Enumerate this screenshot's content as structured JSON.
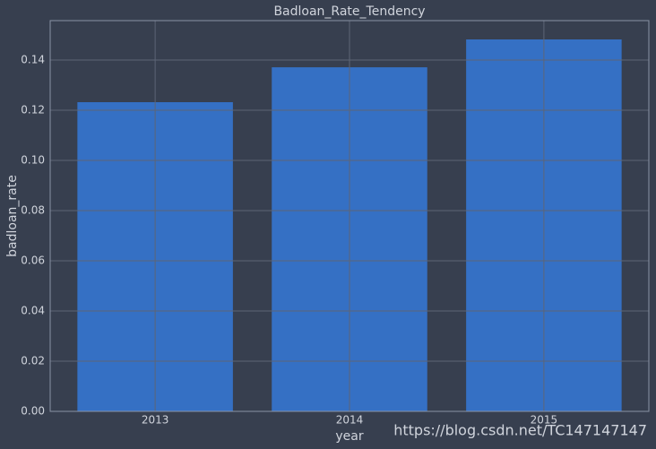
{
  "chart_data": {
    "type": "bar",
    "title": "Badloan_Rate_Tendency",
    "x_label": "year",
    "y_label": "badloan_rate",
    "categories": [
      "2013",
      "2014",
      "2015"
    ],
    "values": [
      0.1232,
      0.1371,
      0.1482
    ],
    "color": "#3570c4",
    "ylim": [
      0,
      0.1557
    ],
    "yticks": [
      {
        "value": 0,
        "label": "0.00"
      },
      0.02,
      0.04,
      0.06,
      0.08,
      {
        "value": 0.1,
        "label": "0.10"
      },
      0.12,
      0.14
    ],
    "grid": true,
    "annotation": "https://blog.csdn.net/TC147147147"
  }
}
